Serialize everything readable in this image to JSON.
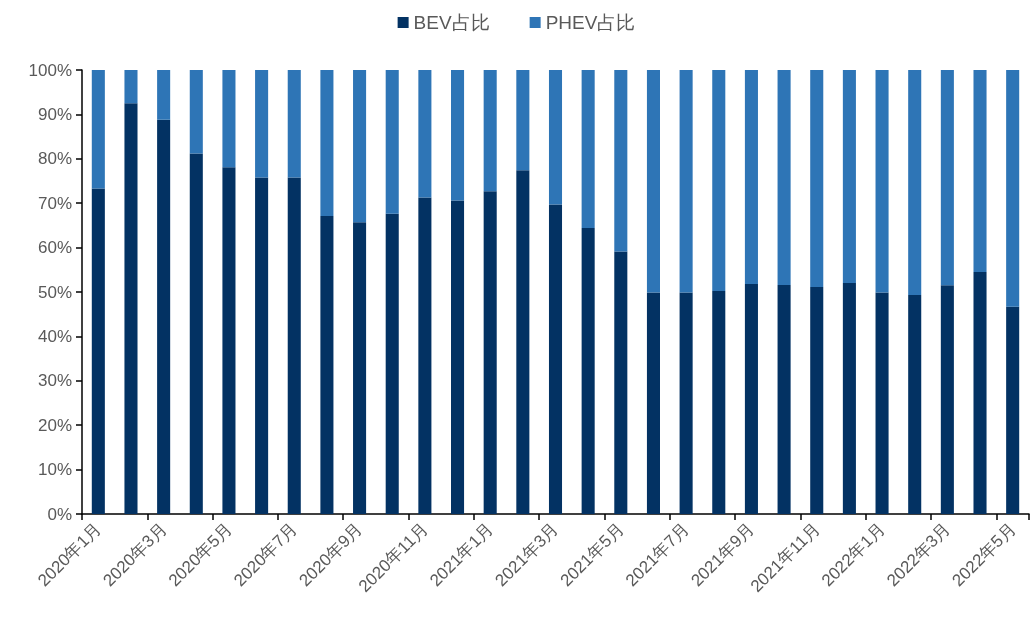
{
  "chart_data": {
    "type": "bar",
    "stacked": true,
    "categories": [
      "2020年1月",
      null,
      "2020年3月",
      null,
      "2020年5月",
      null,
      "2020年7月",
      null,
      "2020年9月",
      null,
      "2020年11月",
      null,
      "2021年1月",
      null,
      "2021年3月",
      null,
      "2021年5月",
      null,
      "2021年7月",
      null,
      "2021年9月",
      null,
      "2021年11月",
      null,
      "2022年1月",
      null,
      "2022年3月",
      null,
      "2022年5月"
    ],
    "series": [
      {
        "name": "BEV占比",
        "color": "#033263",
        "values": [
          73.3,
          92.5,
          88.8,
          81.2,
          78.1,
          75.8,
          75.8,
          67.1,
          65.7,
          67.6,
          71.3,
          70.6,
          72.7,
          77.4,
          69.7,
          64.4,
          59.1,
          49.9,
          49.9,
          50.2,
          51.8,
          51.6,
          51.1,
          52.0,
          49.9,
          49.3,
          51.5,
          54.5,
          46.7
        ]
      },
      {
        "name": "PHEV占比",
        "color": "#2e75b6",
        "values": [
          26.7,
          7.5,
          11.2,
          18.8,
          21.9,
          24.2,
          24.2,
          32.9,
          34.3,
          32.4,
          28.7,
          29.4,
          27.3,
          22.6,
          30.3,
          35.6,
          40.9,
          50.1,
          50.1,
          49.8,
          48.2,
          48.4,
          48.9,
          48.0,
          50.1,
          50.7,
          48.5,
          45.5,
          53.3
        ]
      }
    ],
    "ylim": [
      0,
      100
    ],
    "yticks": [
      {
        "value": 0,
        "label": "0%"
      },
      {
        "value": 10,
        "label": "10%"
      },
      {
        "value": 20,
        "label": "20%"
      },
      {
        "value": 30,
        "label": "30%"
      },
      {
        "value": 40,
        "label": "40%"
      },
      {
        "value": 50,
        "label": "50%"
      },
      {
        "value": 60,
        "label": "60%"
      },
      {
        "value": 70,
        "label": "70%"
      },
      {
        "value": 80,
        "label": "80%"
      },
      {
        "value": 90,
        "label": "90%"
      },
      {
        "value": 100,
        "label": "100%"
      }
    ],
    "legend": "top"
  }
}
